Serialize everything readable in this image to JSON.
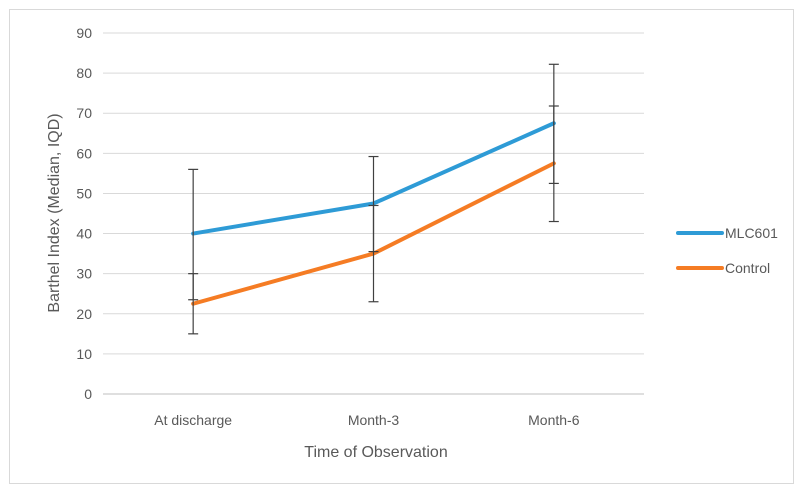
{
  "chart_data": {
    "type": "line",
    "title": "",
    "xlabel": "Time of Observation",
    "ylabel": "Barthel Index (Median, IQD)",
    "categories": [
      "At discharge",
      "Month-3",
      "Month-6"
    ],
    "ylim": [
      0,
      90
    ],
    "yticks": [
      0,
      10,
      20,
      30,
      40,
      50,
      60,
      70,
      80,
      90
    ],
    "grid": true,
    "legend_position": "right",
    "series": [
      {
        "name": "MLC601",
        "color": "#2e9bd6",
        "values": [
          40,
          47.5,
          67.5
        ],
        "error_low": [
          23.5,
          35.5,
          52.5
        ],
        "error_high": [
          56,
          59.2,
          82.2
        ]
      },
      {
        "name": "Control",
        "color": "#f57c24",
        "values": [
          22.5,
          35,
          57.5
        ],
        "error_low": [
          15,
          23,
          43
        ],
        "error_high": [
          30,
          47,
          71.8
        ]
      }
    ]
  }
}
